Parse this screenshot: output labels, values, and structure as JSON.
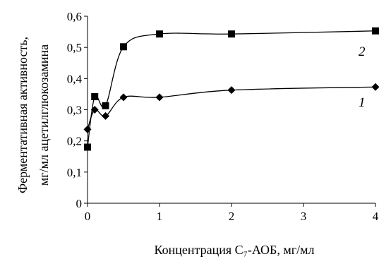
{
  "colors": {
    "series": "#000000",
    "background": "#ffffff"
  },
  "chart_data": {
    "type": "line",
    "title": "",
    "xlabel": "Концентрация С₇-АОБ, мг/мл",
    "ylabel_line1": "Ферментативная активность,",
    "ylabel_line2": "мг/мл ацетилглюкозамина",
    "xlim": [
      0,
      4
    ],
    "ylim": [
      0,
      0.6
    ],
    "grid": false,
    "legend": "none",
    "x_ticks": [
      "0",
      "1",
      "2",
      "3",
      "4"
    ],
    "y_ticks": [
      "0",
      "0,1",
      "0,2",
      "0,3",
      "0,4",
      "0,5",
      "0,6"
    ],
    "series": [
      {
        "name": "1",
        "marker": "diamond",
        "x": [
          0,
          0.1,
          0.25,
          0.5,
          1,
          2,
          4
        ],
        "y": [
          0.237,
          0.3,
          0.28,
          0.34,
          0.34,
          0.363,
          0.373
        ]
      },
      {
        "name": "2",
        "marker": "square",
        "x": [
          0,
          0.1,
          0.25,
          0.5,
          1,
          2,
          4
        ],
        "y": [
          0.18,
          0.342,
          0.313,
          0.502,
          0.543,
          0.543,
          0.553
        ]
      }
    ]
  }
}
